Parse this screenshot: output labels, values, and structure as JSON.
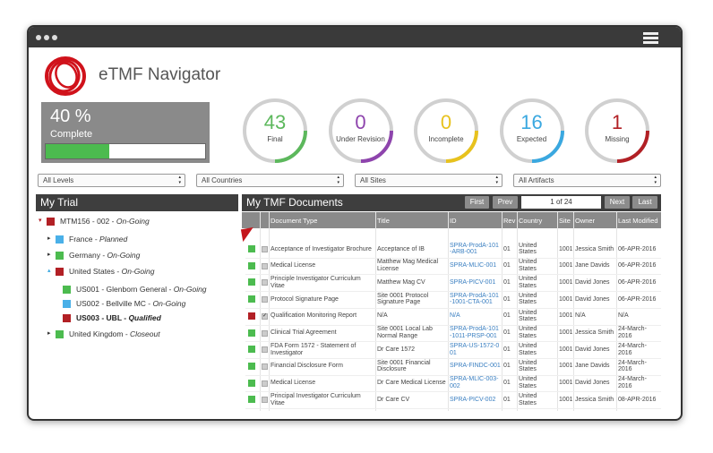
{
  "header": {
    "title": "eTMF Navigator"
  },
  "progress": {
    "value": 40,
    "label": "40 %",
    "caption": "Complete",
    "color": "#4cbb4f"
  },
  "stats": [
    {
      "value": 43,
      "label": "Final",
      "color": "#5cb85c"
    },
    {
      "value": 0,
      "label": "Under Revision",
      "color": "#8e44ad"
    },
    {
      "value": 0,
      "label": "Incomplete",
      "color": "#e8c21d"
    },
    {
      "value": 16,
      "label": "Expected",
      "color": "#3aa8e0"
    },
    {
      "value": 1,
      "label": "Missing",
      "color": "#b22025"
    }
  ],
  "filters": [
    "All Levels",
    "All Countries",
    "All Sites",
    "All Artifacts"
  ],
  "trial": {
    "title": "My Trial",
    "items": [
      {
        "label": "MTM156 - 002 -",
        "status": "On-Going",
        "level": 0,
        "expanded": true,
        "color": "#b22025"
      },
      {
        "label": "France -",
        "status": "Planned",
        "level": 1,
        "expanded": false,
        "color": "#4ab0e8"
      },
      {
        "label": "Germany -",
        "status": "On-Going",
        "level": 1,
        "expanded": false,
        "color": "#4cbb4f"
      },
      {
        "label": "United States -",
        "status": "On-Going",
        "level": 1,
        "expanded": true,
        "color": "#b22025"
      },
      {
        "label": "US001 - Glenborn General -",
        "status": "On-Going",
        "level": 2,
        "color": "#4cbb4f"
      },
      {
        "label": "US002 - Bellville MC -",
        "status": "On-Going",
        "level": 2,
        "color": "#4ab0e8"
      },
      {
        "label": "US003 - UBL -",
        "status": "Qualified",
        "level": 2,
        "color": "#b22025",
        "bold": true
      },
      {
        "label": "United Kingdom -",
        "status": "Closeout",
        "level": 1,
        "expanded": false,
        "color": "#4cbb4f"
      }
    ]
  },
  "documents": {
    "title": "My TMF Documents",
    "pager": {
      "first": "First",
      "prev": "Prev",
      "page": "1 of 24",
      "next": "Next",
      "last": "Last"
    },
    "columns": [
      "Document Type",
      "Title",
      "ID",
      "Rev",
      "Country",
      "Site",
      "Owner",
      "Last Modified"
    ],
    "rows": [
      {
        "color": "#4cbb4f",
        "checked": false,
        "cells": [
          "Acceptance of Investigator Brochure",
          "Acceptance of IB",
          "SPRA-ProdA-101-ARB-001",
          "01",
          "United States",
          "1001",
          "Jessica Smith",
          "06-APR-2016"
        ]
      },
      {
        "color": "#4cbb4f",
        "checked": false,
        "cells": [
          "Medical License",
          "Matthew Mag Medical License",
          "SPRA-MLIC-001",
          "01",
          "United States",
          "1001",
          "Jane Davids",
          "06-APR-2016"
        ]
      },
      {
        "color": "#4cbb4f",
        "checked": false,
        "cells": [
          "Principle Investigator Curriculum Vitae",
          "Matthew Mag CV",
          "SPRA-PICV-001",
          "01",
          "United States",
          "1001",
          "David Jones",
          "06-APR-2016"
        ]
      },
      {
        "color": "#4cbb4f",
        "checked": false,
        "cells": [
          "Protocol Signature Page",
          "Site 0001 Protocol Signature Page",
          "SPRA-ProdA-101-1001-CTA-001",
          "01",
          "United States",
          "1001",
          "David Jones",
          "06-APR-2016"
        ]
      },
      {
        "color": "#b22025",
        "checked": true,
        "cells": [
          "Qualification Monitoring Report",
          "N/A",
          "N/A",
          "01",
          "United States",
          "1001",
          "N/A",
          "N/A"
        ]
      },
      {
        "color": "#4cbb4f",
        "checked": false,
        "cells": [
          "Clinical Trial Agreement",
          "Site 0001 Local Lab Normal Range",
          "SPRA-ProdA-101-1011-PRSP-001",
          "01",
          "United States",
          "1001",
          "Jessica Smith",
          "24-March-2016"
        ]
      },
      {
        "color": "#4cbb4f",
        "checked": false,
        "cells": [
          "FDA Form 1572 - Statement of Investigator",
          "Dr Care 1572",
          "SPRA-US-1572-001",
          "01",
          "United States",
          "1001",
          "David Jones",
          "24-March-2016"
        ]
      },
      {
        "color": "#4cbb4f",
        "checked": false,
        "cells": [
          "Financial Disclosure Form",
          "Site 0001 Financial Disclosure",
          "SPRA-FINDC-001",
          "01",
          "United States",
          "1001",
          "Jane Davids",
          "24-March-2016"
        ]
      },
      {
        "color": "#4cbb4f",
        "checked": false,
        "cells": [
          "Medical License",
          "Dr Care Medical License",
          "SPRA-MLIC-003-002",
          "01",
          "United States",
          "1001",
          "David Jones",
          "24-March-2016"
        ]
      },
      {
        "color": "#4cbb4f",
        "checked": false,
        "cells": [
          "Principal Investigator Curriculum Vitae",
          "Dr Care CV",
          "SPRA-PICV-002",
          "01",
          "United States",
          "1001",
          "Jessica Smith",
          "08-APR-2016"
        ]
      }
    ]
  }
}
